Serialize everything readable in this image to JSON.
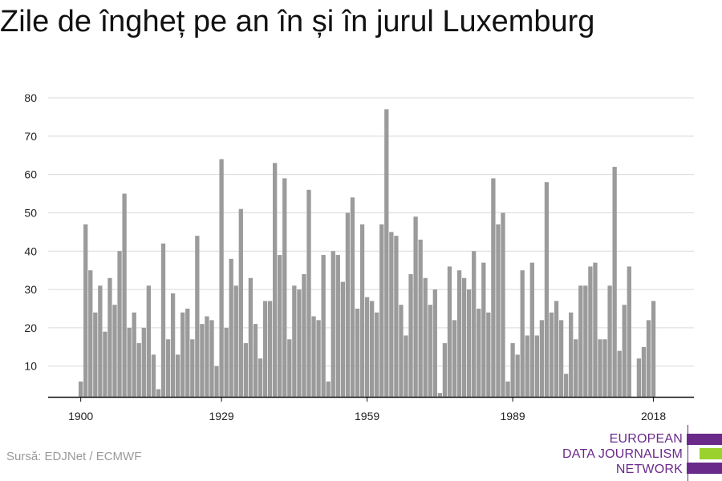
{
  "title": "Zile de îngheț pe an în și în jurul Luxemburg",
  "source": "Sursă: EDJNet / ECMWF",
  "logo": {
    "lines": [
      "EUROPEAN",
      "DATA JOURNALISM",
      "NETWORK"
    ],
    "colors": [
      "#6a2a8a",
      "#9bd12e",
      "#6a2a8a"
    ]
  },
  "chart_data": {
    "type": "bar",
    "title": "Zile de îngheț pe an în și în jurul Luxemburg",
    "xlabel": "",
    "ylabel": "",
    "bar_color": "#9b9b9b",
    "grid": true,
    "ylim": [
      2,
      80
    ],
    "yticks": [
      10,
      20,
      30,
      40,
      50,
      60,
      70,
      80
    ],
    "xticks": [
      1900,
      1929,
      1959,
      1989,
      2018
    ],
    "x": [
      1900,
      1901,
      1902,
      1903,
      1904,
      1905,
      1906,
      1907,
      1908,
      1909,
      1910,
      1911,
      1912,
      1913,
      1914,
      1915,
      1916,
      1917,
      1918,
      1919,
      1920,
      1921,
      1922,
      1923,
      1924,
      1925,
      1926,
      1927,
      1928,
      1929,
      1930,
      1931,
      1932,
      1933,
      1934,
      1935,
      1936,
      1937,
      1938,
      1939,
      1940,
      1941,
      1942,
      1943,
      1944,
      1945,
      1946,
      1947,
      1948,
      1949,
      1950,
      1951,
      1952,
      1953,
      1954,
      1955,
      1956,
      1957,
      1958,
      1959,
      1960,
      1961,
      1962,
      1963,
      1964,
      1965,
      1966,
      1967,
      1968,
      1969,
      1970,
      1971,
      1972,
      1973,
      1974,
      1975,
      1976,
      1977,
      1978,
      1979,
      1980,
      1981,
      1982,
      1983,
      1984,
      1985,
      1986,
      1987,
      1988,
      1989,
      1990,
      1991,
      1992,
      1993,
      1994,
      1995,
      1996,
      1997,
      1998,
      1999,
      2000,
      2001,
      2002,
      2003,
      2004,
      2005,
      2006,
      2007,
      2008,
      2009,
      2010,
      2011,
      2012,
      2013,
      2014,
      2015,
      2016,
      2017,
      2018
    ],
    "values": [
      6,
      47,
      35,
      24,
      31,
      19,
      33,
      26,
      40,
      55,
      20,
      24,
      16,
      20,
      31,
      13,
      4,
      42,
      17,
      29,
      13,
      24,
      25,
      17,
      44,
      21,
      23,
      22,
      10,
      64,
      20,
      38,
      31,
      51,
      16,
      33,
      21,
      12,
      27,
      27,
      63,
      39,
      59,
      17,
      31,
      30,
      34,
      56,
      23,
      22,
      39,
      6,
      40,
      39,
      32,
      50,
      54,
      25,
      47,
      28,
      27,
      24,
      47,
      77,
      45,
      44,
      26,
      18,
      34,
      49,
      43,
      33,
      26,
      30,
      3,
      16,
      36,
      22,
      35,
      33,
      30,
      40,
      25,
      37,
      24,
      59,
      47,
      50,
      6,
      16,
      13,
      35,
      18,
      37,
      18,
      22,
      58,
      24,
      27,
      22,
      8,
      24,
      17,
      31,
      31,
      36,
      37,
      17,
      17,
      31,
      62,
      14,
      26,
      36,
      2,
      12,
      15,
      22,
      27
    ]
  }
}
